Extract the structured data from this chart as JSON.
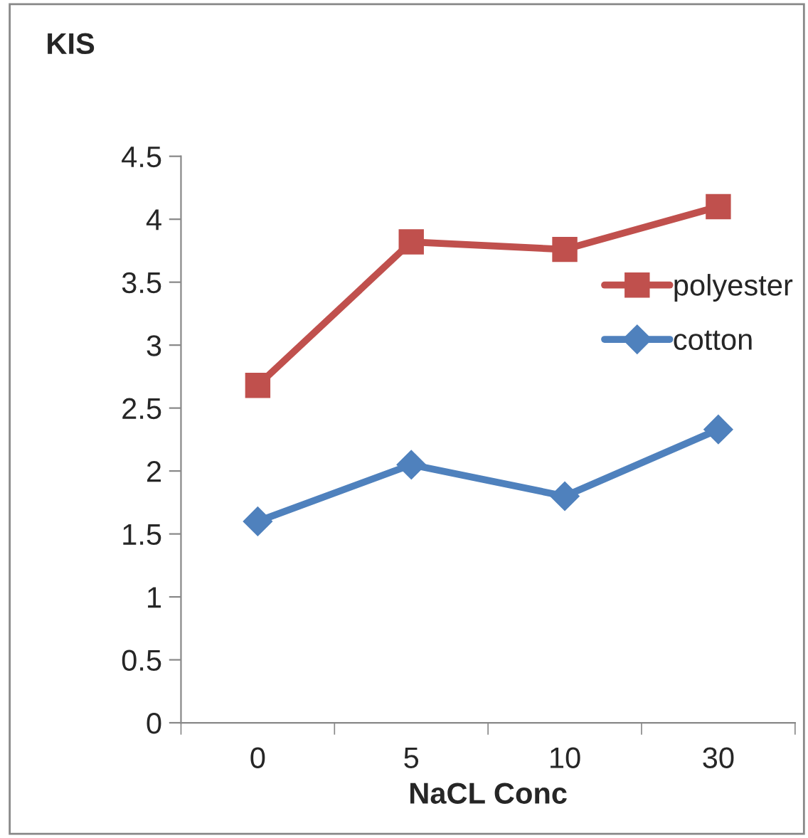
{
  "chart_data": {
    "type": "line",
    "ylabel": "KIS",
    "xlabel": "NaCL Conc",
    "categories": [
      "0",
      "5",
      "10",
      "30"
    ],
    "series": [
      {
        "name": "polyester",
        "color": "#c0504d",
        "marker": "square",
        "values": [
          2.68,
          3.82,
          3.76,
          4.1
        ]
      },
      {
        "name": "cotton",
        "color": "#4f81bd",
        "marker": "diamond",
        "values": [
          1.6,
          2.05,
          1.8,
          2.33
        ]
      }
    ],
    "ylim": [
      0,
      4.5
    ],
    "yticks": [
      0,
      0.5,
      1,
      1.5,
      2,
      2.5,
      3,
      3.5,
      4,
      4.5
    ],
    "grid": false,
    "legend": "right"
  }
}
